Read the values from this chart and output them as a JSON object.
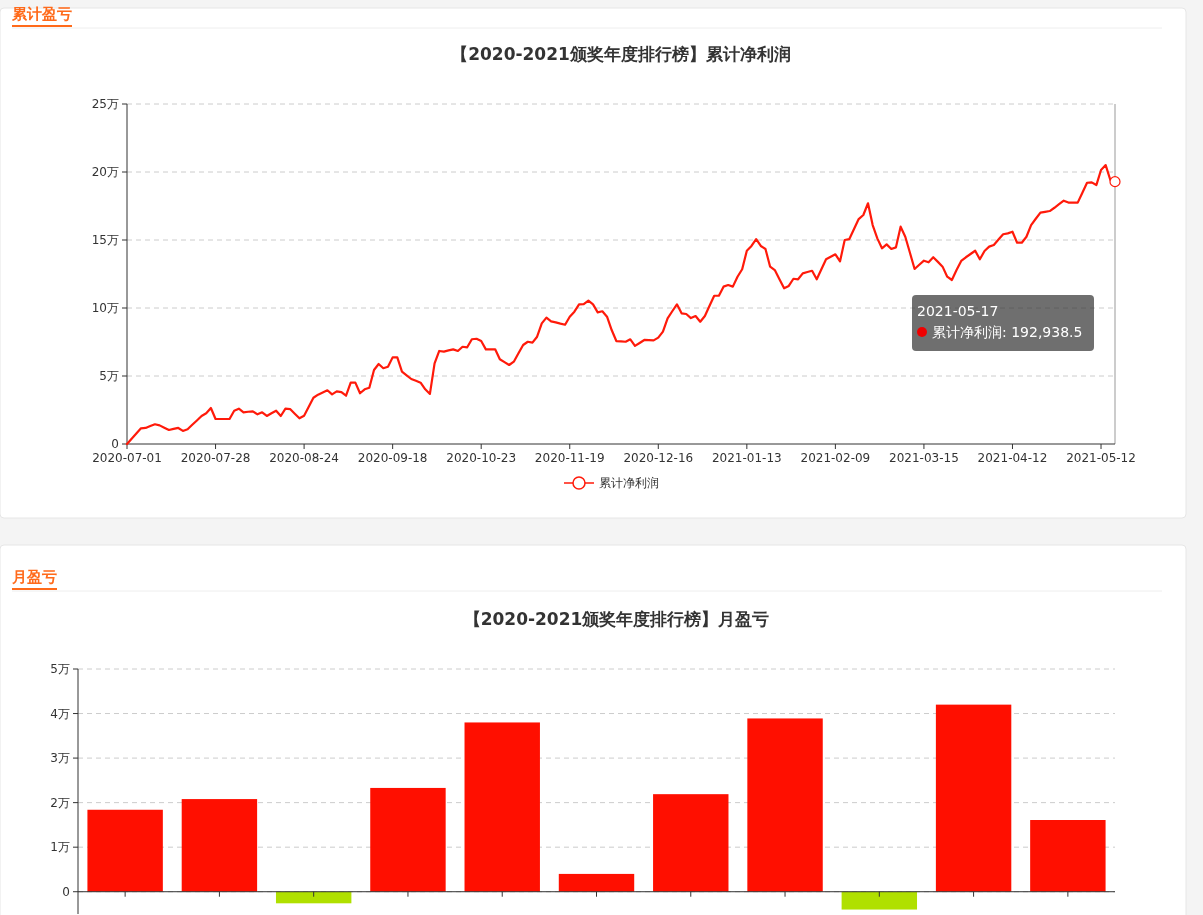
{
  "chart_data": [
    {
      "type": "line",
      "title": "【2020-2021颁奖年度排行榜】累计净利润",
      "annotations": [
        "累计盈亏",
        "2021-05-17",
        "累计净利润: 192,938.5"
      ],
      "categories": [
        "2020-07-01",
        null,
        null,
        null,
        null,
        null,
        null,
        null,
        null,
        null,
        null,
        null,
        null,
        null,
        null,
        null,
        null,
        null,
        null,
        "2020-07-28",
        null,
        null,
        null,
        null,
        null,
        null,
        null,
        null,
        null,
        null,
        null,
        null,
        null,
        null,
        null,
        null,
        null,
        null,
        "2020-08-24",
        null,
        null,
        null,
        null,
        null,
        null,
        null,
        null,
        null,
        null,
        null,
        null,
        null,
        null,
        null,
        null,
        null,
        null,
        "2020-09-18",
        null,
        null,
        null,
        null,
        null,
        null,
        null,
        null,
        null,
        null,
        null,
        null,
        null,
        null,
        null,
        null,
        null,
        null,
        "2020-10-23",
        null,
        null,
        null,
        null,
        null,
        null,
        null,
        null,
        null,
        null,
        null,
        null,
        null,
        null,
        null,
        null,
        null,
        null,
        "2020-11-19",
        null,
        null,
        null,
        null,
        null,
        null,
        null,
        null,
        null,
        null,
        null,
        null,
        null,
        null,
        null,
        null,
        null,
        null,
        "2020-12-16",
        null,
        null,
        null,
        null,
        null,
        null,
        null,
        null,
        null,
        null,
        null,
        null,
        null,
        null,
        null,
        null,
        null,
        null,
        "2021-01-13",
        null,
        null,
        null,
        null,
        null,
        null,
        null,
        null,
        null,
        null,
        null,
        null,
        null,
        null,
        null,
        null,
        null,
        null,
        "2021-02-09",
        null,
        null,
        null,
        null,
        null,
        null,
        null,
        null,
        null,
        null,
        null,
        null,
        null,
        null,
        null,
        null,
        null,
        null,
        "2021-03-15",
        null,
        null,
        null,
        null,
        null,
        null,
        null,
        null,
        null,
        null,
        null,
        null,
        null,
        null,
        null,
        null,
        null,
        null,
        "2021-04-12",
        null,
        null,
        null,
        null,
        null,
        null,
        null,
        null,
        null,
        null,
        null,
        null,
        null,
        null,
        null,
        null,
        null,
        null,
        "2021-05-12",
        null,
        null,
        null
      ],
      "ylim": [
        0,
        25
      ],
      "yticks": [
        0,
        {
          "value": 5,
          "label": "5万"
        },
        {
          "value": 10,
          "label": "10万"
        },
        {
          "value": 15,
          "label": "15万"
        },
        {
          "value": 20,
          "label": "20万"
        },
        {
          "value": 25,
          "label": "25万"
        }
      ],
      "grid": "y",
      "legend": "bottom",
      "series": [
        {
          "name": "累计净利润",
          "color": "#ff1a0a",
          "values": [
            0,
            0.38,
            0.77,
            1.15,
            1.18,
            1.32,
            1.45,
            1.37,
            1.2,
            1.03,
            1.11,
            1.18,
            0.96,
            1.08,
            1.41,
            1.73,
            2.06,
            2.26,
            2.65,
            1.84,
            1.84,
            1.84,
            1.84,
            2.45,
            2.6,
            2.33,
            2.37,
            2.4,
            2.18,
            2.33,
            2.06,
            2.26,
            2.45,
            2.06,
            2.6,
            2.57,
            2.23,
            1.89,
            2.08,
            2.74,
            3.4,
            3.63,
            3.79,
            3.95,
            3.65,
            3.87,
            3.82,
            3.55,
            4.51,
            4.51,
            3.73,
            4.02,
            4.14,
            5.44,
            5.88,
            5.57,
            5.68,
            6.37,
            6.37,
            5.32,
            5.05,
            4.78,
            4.65,
            4.51,
            4.02,
            3.68,
            5.93,
            6.84,
            6.79,
            6.88,
            6.96,
            6.84,
            7.15,
            7.11,
            7.7,
            7.74,
            7.57,
            6.96,
            6.96,
            6.96,
            6.23,
            6.02,
            5.81,
            6.05,
            6.67,
            7.28,
            7.52,
            7.45,
            7.89,
            8.87,
            9.29,
            9.02,
            8.94,
            8.85,
            8.77,
            9.36,
            9.73,
            10.27,
            10.29,
            10.54,
            10.27,
            9.68,
            9.76,
            9.36,
            8.38,
            7.57,
            7.55,
            7.52,
            7.7,
            7.21,
            7.43,
            7.65,
            7.64,
            7.62,
            7.82,
            8.26,
            9.24,
            9.76,
            10.27,
            9.61,
            9.56,
            9.26,
            9.41,
            8.99,
            9.41,
            10.16,
            10.9,
            10.9,
            11.57,
            11.69,
            11.57,
            12.3,
            12.85,
            14.21,
            14.56,
            15.07,
            14.56,
            14.34,
            13.04,
            12.79,
            12.12,
            11.45,
            11.62,
            12.15,
            12.11,
            12.55,
            12.65,
            12.74,
            12.11,
            12.85,
            13.58,
            13.77,
            13.95,
            13.43,
            15.0,
            15.07,
            15.81,
            16.54,
            16.84,
            17.7,
            16.1,
            15.12,
            14.39,
            14.68,
            14.34,
            14.46,
            15.98,
            15.24,
            14.06,
            12.87,
            13.18,
            13.48,
            13.36,
            13.73,
            13.39,
            13.04,
            12.3,
            12.06,
            12.79,
            13.46,
            13.73,
            13.97,
            14.21,
            13.58,
            14.19,
            14.51,
            14.63,
            15.03,
            15.42,
            15.49,
            15.61,
            14.8,
            14.8,
            15.24,
            16.1,
            16.56,
            17.01,
            17.07,
            17.13,
            17.37,
            17.63,
            17.89,
            17.75,
            17.75,
            17.75,
            18.48,
            19.21,
            19.24,
            19.04,
            20.15,
            20.51,
            19.41,
            19.29
          ]
        }
      ]
    },
    {
      "type": "bar",
      "title": "【2020-2021颁奖年度排行榜】月盈亏",
      "annotations": [
        "月盈亏"
      ],
      "categories": [
        null,
        null,
        null,
        null,
        null,
        null,
        null,
        null,
        null,
        null,
        null
      ],
      "values": [
        1.84,
        2.08,
        -0.26,
        2.33,
        3.8,
        0.4,
        2.19,
        3.89,
        -0.4,
        4.2,
        1.61
      ],
      "colors": [
        "#ff0f00",
        "#ff0f00",
        "#b0e000",
        "#ff0f00",
        "#ff0f00",
        "#ff0f00",
        "#ff0f00",
        "#ff0f00",
        "#b0e000",
        "#ff0f00",
        "#ff0f00"
      ],
      "ylim": [
        -0.5,
        5
      ],
      "yticks": [
        0,
        {
          "value": 1,
          "label": "1万"
        },
        {
          "value": 2,
          "label": "2万"
        },
        {
          "value": 3,
          "label": "3万"
        },
        {
          "value": 4,
          "label": "4万"
        },
        {
          "value": 5,
          "label": "5万"
        }
      ],
      "grid": "y",
      "tick_labels": "y"
    }
  ]
}
